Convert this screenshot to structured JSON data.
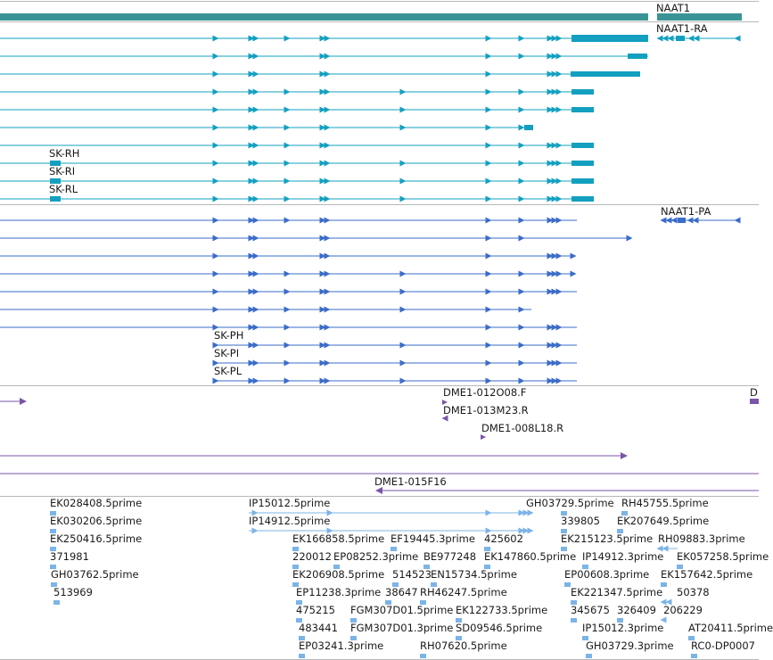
{
  "colors": {
    "gene": "#3a9496",
    "mrna": "#13a0c0",
    "protein": "#3a6cc8",
    "bac": "#7a56a8",
    "est": "#7bb4e6",
    "separator": "#b8b8b8"
  },
  "gene_track": {
    "label": "NAAT1"
  },
  "mrna_track": {
    "label": "NAAT1-RA",
    "row_labels": [
      "SK-RH",
      "SK-RI",
      "SK-RL"
    ]
  },
  "protein_track": {
    "label": "NAAT1-PA",
    "row_labels": [
      "SK-PH",
      "SK-PI",
      "SK-PL"
    ]
  },
  "bac_track": {
    "labels": [
      "DME1-012O08.F",
      "DME1-013M23.R",
      "DME1-008L18.R",
      "DME1-015F16",
      "D"
    ]
  },
  "est_track": {
    "labels": [
      "EK028408.5prime",
      "EK030206.5prime",
      "EK250416.5prime",
      "371981",
      "GH03762.5prime",
      "513969",
      "IP15012.5prime",
      "IP14912.5prime",
      "EK166858.5prime",
      "EF19445.3prime",
      "425602",
      "220012",
      "EP08252.3prime",
      "BE977248",
      "EK147860.5prime",
      "EK206908.5prime",
      "514523",
      "EN15734.5prime",
      "EP11238.3prime",
      "38647",
      "RH46247.5prime",
      "475215",
      "FGM307D01.5prime",
      "EK122733.5prime",
      "483441",
      "FGM307D01.3prime",
      "SD09546.5prime",
      "EP03241.3prime",
      "RH07620.5prime",
      "GH03729.5prime",
      "RH45755.5prime",
      "339805",
      "EK207649.5prime",
      "EK215123.5prime",
      "RH09883.3prime",
      "IP14912.3prime",
      "EK057258.5prime",
      "EP00608.3prime",
      "EK157642.5prime",
      "EK221347.5prime",
      "50378",
      "345675",
      "326409",
      "206229",
      "IP15012.3prime",
      "AT20411.5prime",
      "GH03729.3prime",
      "RC0-DP0007"
    ]
  }
}
